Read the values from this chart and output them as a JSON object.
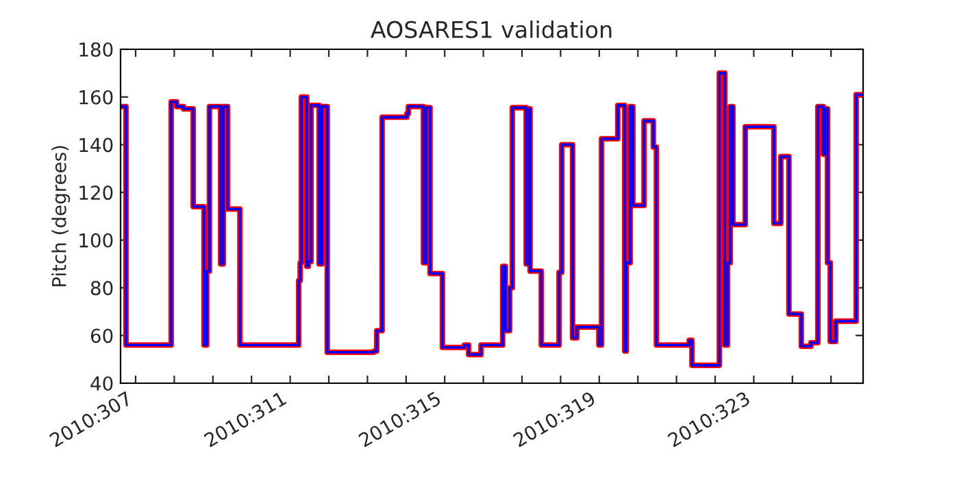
{
  "chart_data": {
    "type": "step",
    "title": "AOSARES1 validation",
    "ylabel": "Pitch (degrees)",
    "x": [
      "2010-11-02T14:38",
      "2010-11-02T18:00",
      "2010-11-03T22:05",
      "2010-11-04T01:26",
      "2010-11-04T05:46",
      "2010-11-04T11:46",
      "2010-11-04T18:29",
      "2010-11-04T20:10",
      "2010-11-04T21:50",
      "2010-11-05T04:48",
      "2010-11-05T06:29",
      "2010-11-05T09:07",
      "2010-11-05T16:48",
      "2010-11-07T05:17",
      "2010-11-07T06:14",
      "2010-11-07T06:58",
      "2010-11-07T10:19",
      "2010-11-07T11:17",
      "2010-11-07T12:58",
      "2010-11-07T18:00",
      "2010-11-07T19:41",
      "2010-11-07T23:02",
      "2010-11-09T04:05",
      "2010-11-09T05:46",
      "2010-11-09T09:07",
      "2010-11-10T00:29",
      "2010-11-10T01:26",
      "2010-11-10T10:48",
      "2010-11-10T12:29",
      "2010-11-10T14:53",
      "2010-11-10T22:34",
      "2010-11-11T12:14",
      "2010-11-11T14:53",
      "2010-11-11T22:34",
      "2010-11-12T12:00",
      "2010-11-12T13:41",
      "2010-11-12T16:19",
      "2010-11-12T18:00",
      "2010-11-13T02:38",
      "2010-11-13T04:19",
      "2010-11-13T05:02",
      "2010-11-13T12:00",
      "2010-11-13T23:02",
      "2010-11-14T00:43",
      "2010-11-14T07:26",
      "2010-11-14T10:05",
      "2010-11-14T23:46",
      "2010-11-15T01:26",
      "2010-11-15T11:31",
      "2010-11-15T15:50",
      "2010-11-15T16:48",
      "2010-11-15T19:12",
      "2010-11-15T20:53",
      "2010-11-16T03:50",
      "2010-11-16T09:36",
      "2010-11-16T11:31",
      "2010-11-17T07:55",
      "2010-11-17T09:36",
      "2010-11-18T02:38",
      "2010-11-18T06:00",
      "2010-11-18T07:41",
      "2010-11-18T09:22",
      "2010-11-18T11:02",
      "2010-11-18T18:43",
      "2010-11-19T12:29",
      "2010-11-19T16:48",
      "2010-11-19T21:50",
      "2010-11-20T05:31",
      "2010-11-20T11:31",
      "2010-11-20T15:50",
      "2010-11-20T19:12",
      "2010-11-20T20:10",
      "2010-11-20T21:50",
      "2010-11-20T23:31",
      "2010-11-21T02:53",
      "2010-11-21T15:36",
      "2010-11-21T19:55"
    ],
    "series": [
      {
        "color": "#ff0000",
        "values": [
          156,
          56,
          158,
          156,
          155,
          114,
          56,
          87,
          156,
          90,
          156,
          113,
          56,
          83,
          90.5,
          160,
          89,
          91,
          156.5,
          90,
          156,
          53,
          53.5,
          62,
          151.5,
          153,
          156,
          90.5,
          155.5,
          86,
          55,
          56,
          52,
          56,
          89,
          62,
          80,
          155.5,
          90,
          155,
          87,
          56,
          86.5,
          140,
          59,
          63.5,
          56,
          142.5,
          156.5,
          53.5,
          90.5,
          156,
          114.5,
          150,
          139,
          56,
          58,
          47.5,
          170,
          56,
          90.5,
          156,
          106.5,
          147.5,
          107,
          135,
          69,
          55.5,
          57,
          156,
          136,
          155,
          90.5,
          57.5,
          66,
          161,
          161
        ]
      },
      {
        "color": "#0000ff",
        "values": [
          156,
          56,
          158,
          156,
          155,
          114,
          56,
          87,
          156,
          90,
          156,
          113,
          56,
          83,
          90.5,
          160,
          89,
          91,
          156.5,
          90,
          156,
          53,
          53.5,
          62,
          151.5,
          153,
          156,
          90.5,
          155.5,
          86,
          55,
          56,
          52,
          56,
          89,
          62,
          80,
          155.5,
          90,
          155,
          87,
          56,
          86.5,
          140,
          59,
          63.5,
          56,
          142.5,
          156.5,
          53.5,
          90.5,
          156,
          114.5,
          150,
          139,
          56,
          58,
          47.5,
          170,
          56,
          90.5,
          156,
          106.5,
          147.5,
          107,
          135,
          69,
          55.5,
          57,
          156,
          136,
          155,
          90.5,
          57.5,
          66,
          161,
          161
        ]
      }
    ],
    "xlim": [
      "2010-11-02T14:38",
      "2010-11-21T19:55"
    ],
    "xticks": [
      {
        "value": "2010-11-03",
        "label": "2010:307"
      },
      {
        "value": "2010-11-04",
        "label": null
      },
      {
        "value": "2010-11-05",
        "label": null
      },
      {
        "value": "2010-11-06",
        "label": null
      },
      {
        "value": "2010-11-07",
        "label": "2010:311"
      },
      {
        "value": "2010-11-08",
        "label": null
      },
      {
        "value": "2010-11-09",
        "label": null
      },
      {
        "value": "2010-11-10",
        "label": null
      },
      {
        "value": "2010-11-11",
        "label": "2010:315"
      },
      {
        "value": "2010-11-12",
        "label": null
      },
      {
        "value": "2010-11-13",
        "label": null
      },
      {
        "value": "2010-11-14",
        "label": null
      },
      {
        "value": "2010-11-15",
        "label": "2010:319"
      },
      {
        "value": "2010-11-16",
        "label": null
      },
      {
        "value": "2010-11-17",
        "label": null
      },
      {
        "value": "2010-11-18",
        "label": null
      },
      {
        "value": "2010-11-19",
        "label": "2010:323"
      },
      {
        "value": "2010-11-20",
        "label": null
      },
      {
        "value": "2010-11-21",
        "label": null
      }
    ],
    "ylim": [
      40,
      180
    ],
    "yticks": [
      40,
      60,
      80,
      100,
      120,
      140,
      160,
      180
    ],
    "grid": false,
    "legend": false
  }
}
